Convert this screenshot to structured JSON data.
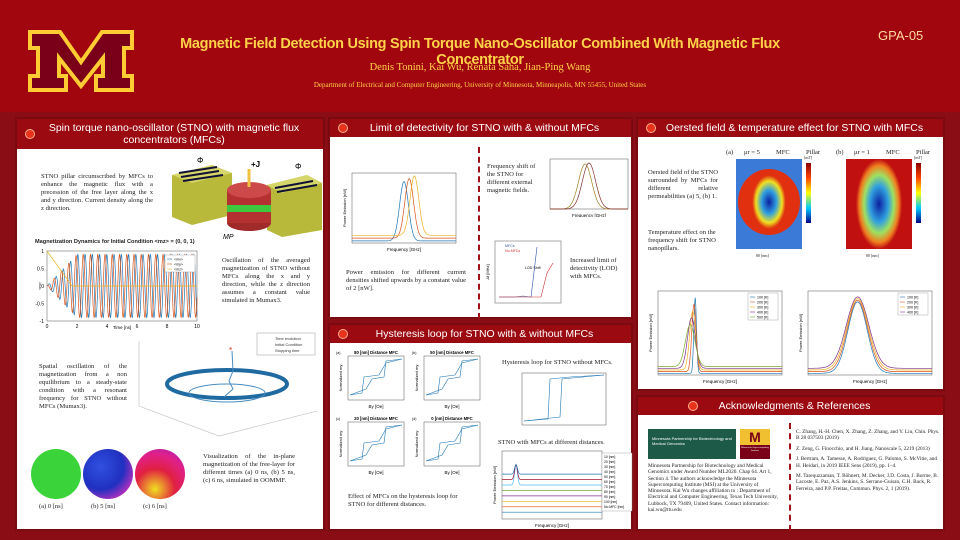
{
  "header": {
    "title": "Magnetic Field Detection Using Spin Torque Nano-Oscillator Combined With Magnetic Flux Concentrator",
    "code": "GPA-05",
    "authors": "Denis Tonini, Kai Wu, Renata Saha, Jian-Ping Wang",
    "affiliation": "Department of Electrical and Computer Engineering, University of Minnesota, Minneapolis, MN 55455, United States",
    "logo_letter": "M"
  },
  "colors": {
    "background": "#8a0c14",
    "header": "#a1060e",
    "accent": "#ffd24a",
    "panel_header": "#9b0a10"
  },
  "panel1": {
    "title": "Spin torque nano-oscillator (STNO) with magnetic flux concentrators (MFCs)",
    "text1": "STNO pillar circumscribed by MFCs to enhance the magnetic flux with a precession of the free layer along the x and y direction. Current density along the z direction.",
    "fig1_labels": {
      "phi": "Φ",
      "j": "+J",
      "mp": "MP"
    },
    "plot_title": "Magnetization Dynamics for Initial Condition <mz> = (0, 0, 1)",
    "plot_xlabel": "Time [ns]",
    "plot_ylabel": "<m>",
    "plot_legend": [
      "<mx>",
      "<my>",
      "<mz>"
    ],
    "plot_xticks": [
      "0",
      "2",
      "4",
      "6",
      "8",
      "10"
    ],
    "plot_yticks": [
      "1",
      "0.5",
      "0",
      "-0.5",
      "-1"
    ],
    "text2": "Oscillation of the averaged magnetization of STNO without MFCs along the x and y direction, while the z direction assumes a constant value simulated in Mumax3.",
    "legend3d": [
      "Time evolution",
      "Initial Condition",
      "Stopping time"
    ],
    "text3": "Spatial oscillation of the magnetization from a non equilibrium to a steady-state condition with a resonant frequency for STNO without MFCs (Mumax3).",
    "snap_labels": [
      "(a)  0 [ns]",
      "(b)  5 [ns]",
      "(c)  6 [ns]"
    ],
    "text4": "Visualization of the in-plane magnetization of the free-layer for different times (a) 0 ns, (b) 5 ns, (c) 6 ns, simulated in OOMMF."
  },
  "panel2": {
    "title": "Limit of detectivity for STNO with & without MFCs",
    "text1": "Power emission for different current densities shifted upwards by a constant value of 2 [nW].",
    "text2": "Frequency shift of the STNO for different external magnetic fields.",
    "text3": "Increased limit of detectivity (LOD) with MFCs.",
    "plot1_xlabel": "Frequency [GHz]",
    "plot1_ylabel": "Power Emission [nW]",
    "plot2_xlabel": "Frequency [GHz]",
    "plot3_legend": [
      "MFCs",
      "No MFCs"
    ],
    "plot3_annotation": "LOD Shift",
    "plot3_ylabel": "Δf [MHz]"
  },
  "panel3": {
    "title": "Hysteresis loop for STNO with & without MFCs",
    "loops": [
      {
        "tag": "(a)",
        "title": "80 [nm] Distance MFC"
      },
      {
        "tag": "(b)",
        "title": "50 [nm] Distance MFC"
      },
      {
        "tag": "(c)",
        "title": "20 [nm] Distance MFC"
      },
      {
        "tag": "(d)",
        "title": "0 [nm] Distance MFC"
      }
    ],
    "loop_xlabel": "By [Oe]",
    "loop_ylabel": "Normalized my",
    "text1": "Effect of MFCs on the hysteresis loop for STNO for different distances.",
    "text2": "Hysteresis loop for STNO without MFCs.",
    "text3": "STNO with MFCs at different distances.",
    "plot_xlabel": "Frequency [GHz]",
    "plot_ylabel": "Power Emission [nW]",
    "dist_legend": [
      "10 [nm]",
      "20 [nm]",
      "30 [nm]",
      "40 [nm]",
      "50 [nm]",
      "60 [nm]",
      "70 [nm]",
      "80 [nm]",
      "90 [nm]",
      "100 [nm]",
      "No MFC [nm]"
    ]
  },
  "panel4": {
    "title": "Oersted field & temperature effect for STNO with MFCs",
    "text1": "Oersted field of the STNO surrounded by MFCs for different relative permeabilities (a) 5, (b) 1.",
    "text2": "Temperature effect on the frequency shift for STNO nanopillars.",
    "map_labels": [
      "(a)",
      "(b)"
    ],
    "map_mu": [
      "μr = 5",
      "μr = 1"
    ],
    "map_unit": "[mT]",
    "mfc": "MFC",
    "pillar": "Pillar",
    "map_dim": "80 [nm]",
    "temp1_legend": [
      "100 [K]",
      "200 [K]",
      "300 [K]",
      "400 [K]",
      "500 [K]"
    ],
    "temp2_legend": [
      "100 [K]",
      "200 [K]",
      "300 [K]",
      "400 [K]"
    ],
    "xlabel": "Frequency [GHz]",
    "ylabel": "Power Emission [nW]"
  },
  "panel5": {
    "title": "Acknowledgments & References",
    "logo1": "Minnesota Partnership for Biotechnology and Medical Genomics",
    "logo2": "Minnesota Supercomputing Institute",
    "ack": "Minnesota Partnership for Biotechnology and Medical Genomics under Award Number ML2020. Chap 64. Art 1, Section 4. The authors acknowledge the Minnesota Supercomputing Institute (MSI) at the University of Minnesota. Kai Wu changes affiliation to : Department of Electrical and Computer Engineering, Texas Tech University, Lubbock, TX 79409, United States. Contact information: kai.wu@ttu.edu",
    "refs": [
      "C. Zhang, H.-H. Chen, X. Zhang, Z. Zhang, and Y. Liu, Chin. Phys. B 28 037503 (2019)",
      "Z. Zeng, G. Finocchio, and H. Jiang, Nanoscale 5, 2219 (2013)",
      "J. Bertram, A. Tamesse, A. Rodriguez, G. Palomo, S. McVitie, and H. Heidari, in 2019 IEEE Sens (2019), pp. 1–4.",
      "M. Tarequzzaman, T. Böhnert, M. Decker, J.D. Costa, J. Borme, B. Lacoste, E. Paz, A.S. Jenkins, S. Serrano-Guisan, C.H. Back, R. Ferreira, and P.P. Freitas, Commun. Phys. 2, 1 (2019)."
    ]
  }
}
